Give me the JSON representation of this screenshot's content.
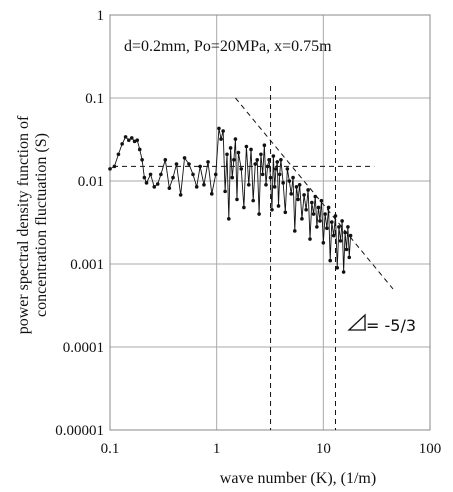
{
  "chart_data": {
    "type": "scatter",
    "title": "",
    "annotation": "d=0.2mm, Po=20MPa, x=0.75m",
    "slope_label": "= -5/3",
    "xlabel": "wave number (K), (1/m)",
    "ylabel_line1": "power spectral density function of",
    "ylabel_line2": "concentration fluctuation (S)",
    "xscale": "log",
    "yscale": "log",
    "xlim": [
      0.1,
      100
    ],
    "ylim": [
      1e-05,
      1
    ],
    "x_ticks": [
      "0.1",
      "1",
      "10",
      "100"
    ],
    "y_ticks": [
      "1",
      "0.1",
      "0.01",
      "0.001",
      "0.0001",
      "0.00001"
    ],
    "grid": true,
    "reference_lines": {
      "horizontal_y": 0.015,
      "vertical_x": [
        3.2,
        13
      ],
      "slope_line": {
        "x1": 1.5,
        "y1": 0.1,
        "x2": 45,
        "y2": 0.0005,
        "slope": "-5/3"
      }
    },
    "series": [
      {
        "x": [
          0.1,
          0.11,
          0.12,
          0.13,
          0.14,
          0.15,
          0.16,
          0.17,
          0.18,
          0.19,
          0.2,
          0.21,
          0.22,
          0.24,
          0.26,
          0.28,
          0.3,
          0.33,
          0.36,
          0.39,
          0.42,
          0.46,
          0.5,
          0.55,
          0.6,
          0.65,
          0.7,
          0.76,
          0.83,
          0.9,
          0.98,
          1.05,
          1.1,
          1.15,
          1.2,
          1.25,
          1.3,
          1.35,
          1.4,
          1.45,
          1.5,
          1.55,
          1.6,
          1.7,
          1.8,
          1.9,
          2.0,
          2.1,
          2.2,
          2.3,
          2.4,
          2.5,
          2.6,
          2.7,
          2.8,
          2.9,
          3.0,
          3.1,
          3.2,
          3.3,
          3.4,
          3.5,
          3.6,
          3.7,
          3.8,
          3.9,
          4.0,
          4.2,
          4.4,
          4.6,
          4.8,
          5.0,
          5.2,
          5.4,
          5.6,
          5.8,
          6.0,
          6.3,
          6.6,
          6.9,
          7.2,
          7.5,
          7.8,
          8.1,
          8.4,
          8.7,
          9.0,
          9.3,
          9.6,
          10.0,
          10.4,
          10.8,
          11.2,
          11.6,
          12.0,
          12.5,
          13.0,
          13.5,
          14.0,
          14.5,
          15.0,
          15.5,
          16.0,
          16.5,
          17.0,
          17.5,
          18.0
        ],
        "y": [
          0.014,
          0.015,
          0.021,
          0.028,
          0.034,
          0.031,
          0.033,
          0.03,
          0.031,
          0.024,
          0.018,
          0.011,
          0.0095,
          0.012,
          0.0085,
          0.0092,
          0.012,
          0.018,
          0.0082,
          0.011,
          0.016,
          0.0068,
          0.019,
          0.016,
          0.012,
          0.0085,
          0.015,
          0.009,
          0.017,
          0.007,
          0.012,
          0.043,
          0.032,
          0.04,
          0.0075,
          0.021,
          0.0035,
          0.025,
          0.011,
          0.018,
          0.032,
          0.006,
          0.022,
          0.014,
          0.0048,
          0.026,
          0.009,
          0.024,
          0.0058,
          0.016,
          0.018,
          0.004,
          0.021,
          0.012,
          0.027,
          0.009,
          0.015,
          0.018,
          0.011,
          0.0045,
          0.02,
          0.0085,
          0.014,
          0.017,
          0.005,
          0.012,
          0.018,
          0.0095,
          0.0042,
          0.014,
          0.01,
          0.007,
          0.011,
          0.0025,
          0.0085,
          0.006,
          0.009,
          0.0035,
          0.0068,
          0.0045,
          0.0078,
          0.002,
          0.0055,
          0.004,
          0.0065,
          0.0028,
          0.0048,
          0.0033,
          0.0058,
          0.0018,
          0.004,
          0.0027,
          0.0048,
          0.0011,
          0.0032,
          0.0022,
          0.0038,
          0.0009,
          0.0028,
          0.0019,
          0.0033,
          0.0008,
          0.0024,
          0.0015,
          0.0028,
          0.0012,
          0.0022
        ]
      }
    ]
  }
}
